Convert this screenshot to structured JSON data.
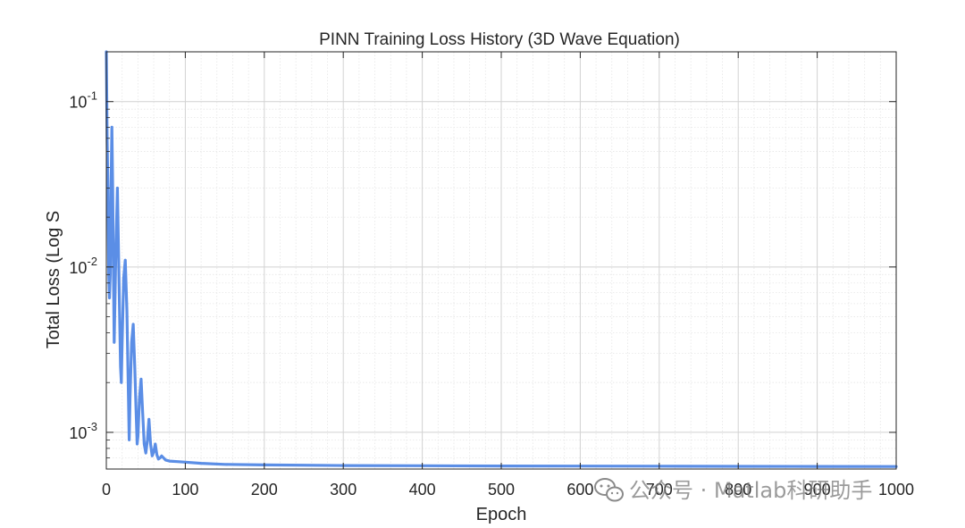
{
  "chart_data": {
    "type": "line",
    "title": "PINN Training Loss History (3D Wave Equation)",
    "xlabel": "Epoch",
    "ylabel": "Total Loss (Log S",
    "xlim": [
      0,
      1000
    ],
    "ylim": [
      0.0006,
      0.2
    ],
    "yscale": "log",
    "grid": true,
    "minor_grid": true,
    "line_color": "#5b8ee6",
    "x_ticks": [
      0,
      100,
      200,
      300,
      400,
      500,
      600,
      700,
      800,
      900,
      1000
    ],
    "x_tick_labels": [
      "0",
      "100",
      "200",
      "300",
      "400",
      "500",
      "600",
      "700",
      "800",
      "900",
      "1000"
    ],
    "y_ticks": [
      0.001,
      0.01,
      0.1
    ],
    "y_tick_labels": [
      {
        "base": "10",
        "exp": "-3"
      },
      {
        "base": "10",
        "exp": "-2"
      },
      {
        "base": "10",
        "exp": "-1"
      }
    ],
    "series": [
      {
        "x": [
          0,
          1,
          2,
          3,
          4,
          5,
          6,
          7,
          8,
          9,
          10,
          12,
          14,
          16,
          18,
          19,
          20,
          22,
          24,
          26,
          28,
          29,
          30,
          32,
          34,
          36,
          38,
          39,
          40,
          42,
          44,
          46,
          48,
          50,
          52,
          54,
          56,
          58,
          60,
          62,
          64,
          66,
          68,
          70,
          75,
          80,
          90,
          100,
          120,
          150,
          200,
          300,
          400,
          500,
          600,
          700,
          800,
          900,
          1000
        ],
        "y": [
          0.2,
          0.06,
          0.03,
          0.009,
          0.0065,
          0.009,
          0.03,
          0.07,
          0.03,
          0.009,
          0.0035,
          0.012,
          0.03,
          0.009,
          0.0025,
          0.002,
          0.0035,
          0.0085,
          0.011,
          0.0055,
          0.0016,
          0.0009,
          0.0016,
          0.0035,
          0.0045,
          0.0025,
          0.0012,
          0.00085,
          0.00095,
          0.0016,
          0.0021,
          0.0013,
          0.00085,
          0.00075,
          0.0009,
          0.0012,
          0.00085,
          0.00072,
          0.00076,
          0.00085,
          0.00073,
          0.00069,
          0.0007,
          0.00072,
          0.00068,
          0.00067,
          0.000665,
          0.00066,
          0.00065,
          0.00064,
          0.000635,
          0.00063,
          0.000628,
          0.000626,
          0.000625,
          0.000624,
          0.000623,
          0.000622,
          0.000621
        ]
      }
    ]
  },
  "watermark": {
    "icon": "wechat-icon",
    "text": "公众号 · Matlab科研助手"
  }
}
